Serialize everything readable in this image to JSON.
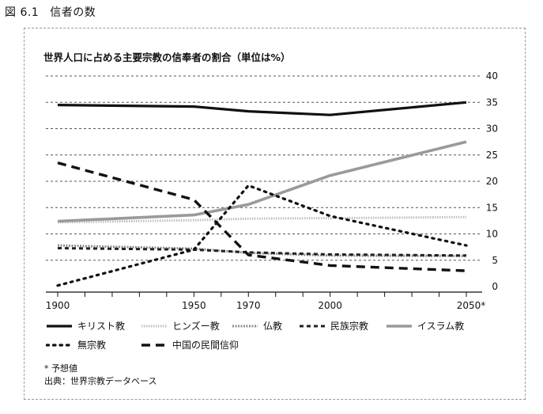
{
  "figure": {
    "number": "図 6.1",
    "title": "信者の数"
  },
  "chart_data": {
    "type": "line",
    "title": "世界人口に占める主要宗教の信奉者の割合（単位は%）",
    "x_tick_labels": [
      "1900",
      "1950",
      "1970",
      "2000",
      "2050*"
    ],
    "x_range": [
      1900,
      2050
    ],
    "y_range": [
      0,
      40
    ],
    "y_ticks": [
      0,
      5,
      10,
      15,
      20,
      25,
      30,
      35,
      40
    ],
    "grid": "horizontal dashed",
    "legend_position": "bottom",
    "series": [
      {
        "name": "キリスト教",
        "style": "solid",
        "color": "#111111",
        "x": [
          1900,
          1950,
          1970,
          2000,
          2050
        ],
        "y": [
          34.5,
          34.2,
          33.3,
          32.6,
          35.0
        ]
      },
      {
        "name": "ヒンズー教",
        "style": "light-dotted",
        "color": "#b8b8b8",
        "x": [
          1900,
          1950,
          1970,
          2000,
          2050
        ],
        "y": [
          12.2,
          12.6,
          12.9,
          13.0,
          13.2
        ]
      },
      {
        "name": "仏教",
        "style": "gray-dotted",
        "color": "#9a9a9a",
        "x": [
          1900,
          1950,
          1970,
          2000,
          2050
        ],
        "y": [
          7.8,
          7.2,
          6.4,
          5.9,
          5.8
        ]
      },
      {
        "name": "民族宗教",
        "style": "small-dashed",
        "color": "#222222",
        "x": [
          1900,
          1950,
          1970,
          2000,
          2050
        ],
        "y": [
          7.3,
          7.0,
          6.5,
          6.1,
          5.9
        ]
      },
      {
        "name": "イスラム教",
        "style": "thick-gray",
        "color": "#9a9a9a",
        "x": [
          1900,
          1950,
          1970,
          2000,
          2050
        ],
        "y": [
          12.4,
          13.6,
          15.6,
          21.1,
          27.5
        ]
      },
      {
        "name": "無宗教",
        "style": "dotted",
        "color": "#111111",
        "x": [
          1900,
          1950,
          1970,
          2000,
          2050
        ],
        "y": [
          0.2,
          7.0,
          19.2,
          13.4,
          7.8
        ]
      },
      {
        "name": "中国の民間信仰",
        "style": "dashed",
        "color": "#111111",
        "x": [
          1900,
          1950,
          1970,
          2000,
          2050
        ],
        "y": [
          23.5,
          16.5,
          6.0,
          4.0,
          3.0
        ]
      }
    ]
  },
  "notes": {
    "projection": "* 予想値",
    "source": "出典：世界宗教データベース"
  }
}
